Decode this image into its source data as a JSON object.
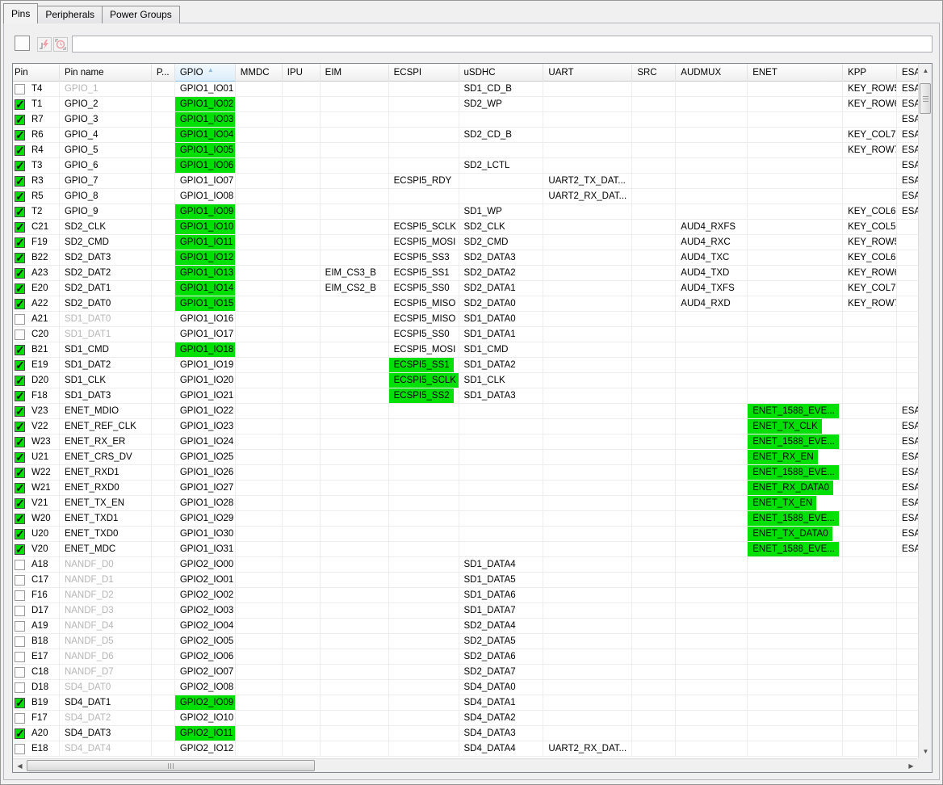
{
  "tabs": [
    {
      "label": "Pins",
      "active": true
    },
    {
      "label": "Peripherals",
      "active": false
    },
    {
      "label": "Power Groups",
      "active": false
    }
  ],
  "toolbar": {
    "checkbox_checked": false,
    "icons": [
      "lightning-icon",
      "clock-icon"
    ],
    "filter_value": ""
  },
  "colors": {
    "route_highlight_green": "#00e005",
    "checked_checkbox_green": "#00e005",
    "sorted_header_blue": "#dcedfa",
    "dim_text_gray": "#b6b6b6"
  },
  "table": {
    "sorted_column": "GPIO",
    "sort_direction": "ascending",
    "columns": [
      {
        "key": "pin",
        "label": "Pin"
      },
      {
        "key": "name",
        "label": "Pin name"
      },
      {
        "key": "p",
        "label": "P..."
      },
      {
        "key": "gpio",
        "label": "GPIO",
        "sorted": true
      },
      {
        "key": "mmdc",
        "label": "MMDC"
      },
      {
        "key": "ipu",
        "label": "IPU"
      },
      {
        "key": "eim",
        "label": "EIM"
      },
      {
        "key": "ecspi",
        "label": "ECSPI"
      },
      {
        "key": "usdhc",
        "label": "uSDHC"
      },
      {
        "key": "uart",
        "label": "UART"
      },
      {
        "key": "src",
        "label": "SRC"
      },
      {
        "key": "audmux",
        "label": "AUDMUX"
      },
      {
        "key": "enet",
        "label": "ENET"
      },
      {
        "key": "kpp",
        "label": "KPP"
      },
      {
        "key": "esa",
        "label": "ESA"
      }
    ],
    "rows": [
      {
        "pin": "T4",
        "name": "GPIO_1",
        "dim": true,
        "chk": false,
        "cells": {
          "gpio": "GPIO1_IO01",
          "usdhc": "SD1_CD_B",
          "kpp": "KEY_ROW5",
          "esa": "ESA"
        },
        "hl": []
      },
      {
        "pin": "T1",
        "name": "GPIO_2",
        "dim": false,
        "chk": true,
        "cells": {
          "gpio": "GPIO1_IO02",
          "usdhc": "SD2_WP",
          "kpp": "KEY_ROW6",
          "esa": "ESA"
        },
        "hl": [
          "gpio"
        ]
      },
      {
        "pin": "R7",
        "name": "GPIO_3",
        "dim": false,
        "chk": true,
        "cells": {
          "gpio": "GPIO1_IO03",
          "esa": "ESA"
        },
        "hl": [
          "gpio"
        ]
      },
      {
        "pin": "R6",
        "name": "GPIO_4",
        "dim": false,
        "chk": true,
        "cells": {
          "gpio": "GPIO1_IO04",
          "usdhc": "SD2_CD_B",
          "kpp": "KEY_COL7",
          "esa": "ESA"
        },
        "hl": [
          "gpio"
        ]
      },
      {
        "pin": "R4",
        "name": "GPIO_5",
        "dim": false,
        "chk": true,
        "cells": {
          "gpio": "GPIO1_IO05",
          "kpp": "KEY_ROW7",
          "esa": "ESA"
        },
        "hl": [
          "gpio"
        ]
      },
      {
        "pin": "T3",
        "name": "GPIO_6",
        "dim": false,
        "chk": true,
        "cells": {
          "gpio": "GPIO1_IO06",
          "usdhc": "SD2_LCTL",
          "esa": "ESA"
        },
        "hl": [
          "gpio"
        ]
      },
      {
        "pin": "R3",
        "name": "GPIO_7",
        "dim": false,
        "chk": true,
        "cells": {
          "gpio": "GPIO1_IO07",
          "ecspi": "ECSPI5_RDY",
          "uart": "UART2_TX_DAT...",
          "esa": "ESA"
        },
        "hl": []
      },
      {
        "pin": "R5",
        "name": "GPIO_8",
        "dim": false,
        "chk": true,
        "cells": {
          "gpio": "GPIO1_IO08",
          "uart": "UART2_RX_DAT...",
          "esa": "ESA"
        },
        "hl": []
      },
      {
        "pin": "T2",
        "name": "GPIO_9",
        "dim": false,
        "chk": true,
        "cells": {
          "gpio": "GPIO1_IO09",
          "usdhc": "SD1_WP",
          "kpp": "KEY_COL6",
          "esa": "ESA"
        },
        "hl": [
          "gpio"
        ]
      },
      {
        "pin": "C21",
        "name": "SD2_CLK",
        "dim": false,
        "chk": true,
        "cells": {
          "gpio": "GPIO1_IO10",
          "ecspi": "ECSPI5_SCLK",
          "usdhc": "SD2_CLK",
          "audmux": "AUD4_RXFS",
          "kpp": "KEY_COL5"
        },
        "hl": [
          "gpio"
        ]
      },
      {
        "pin": "F19",
        "name": "SD2_CMD",
        "dim": false,
        "chk": true,
        "cells": {
          "gpio": "GPIO1_IO11",
          "ecspi": "ECSPI5_MOSI",
          "usdhc": "SD2_CMD",
          "audmux": "AUD4_RXC",
          "kpp": "KEY_ROW5"
        },
        "hl": [
          "gpio"
        ]
      },
      {
        "pin": "B22",
        "name": "SD2_DAT3",
        "dim": false,
        "chk": true,
        "cells": {
          "gpio": "GPIO1_IO12",
          "ecspi": "ECSPI5_SS3",
          "usdhc": "SD2_DATA3",
          "audmux": "AUD4_TXC",
          "kpp": "KEY_COL6"
        },
        "hl": [
          "gpio"
        ]
      },
      {
        "pin": "A23",
        "name": "SD2_DAT2",
        "dim": false,
        "chk": true,
        "cells": {
          "gpio": "GPIO1_IO13",
          "eim": "EIM_CS3_B",
          "ecspi": "ECSPI5_SS1",
          "usdhc": "SD2_DATA2",
          "audmux": "AUD4_TXD",
          "kpp": "KEY_ROW6"
        },
        "hl": [
          "gpio"
        ]
      },
      {
        "pin": "E20",
        "name": "SD2_DAT1",
        "dim": false,
        "chk": true,
        "cells": {
          "gpio": "GPIO1_IO14",
          "eim": "EIM_CS2_B",
          "ecspi": "ECSPI5_SS0",
          "usdhc": "SD2_DATA1",
          "audmux": "AUD4_TXFS",
          "kpp": "KEY_COL7"
        },
        "hl": [
          "gpio"
        ]
      },
      {
        "pin": "A22",
        "name": "SD2_DAT0",
        "dim": false,
        "chk": true,
        "cells": {
          "gpio": "GPIO1_IO15",
          "ecspi": "ECSPI5_MISO",
          "usdhc": "SD2_DATA0",
          "audmux": "AUD4_RXD",
          "kpp": "KEY_ROW7"
        },
        "hl": [
          "gpio"
        ]
      },
      {
        "pin": "A21",
        "name": "SD1_DAT0",
        "dim": true,
        "chk": false,
        "cells": {
          "gpio": "GPIO1_IO16",
          "ecspi": "ECSPI5_MISO",
          "usdhc": "SD1_DATA0"
        },
        "hl": []
      },
      {
        "pin": "C20",
        "name": "SD1_DAT1",
        "dim": true,
        "chk": false,
        "cells": {
          "gpio": "GPIO1_IO17",
          "ecspi": "ECSPI5_SS0",
          "usdhc": "SD1_DATA1"
        },
        "hl": []
      },
      {
        "pin": "B21",
        "name": "SD1_CMD",
        "dim": false,
        "chk": true,
        "cells": {
          "gpio": "GPIO1_IO18",
          "ecspi": "ECSPI5_MOSI",
          "usdhc": "SD1_CMD"
        },
        "hl": [
          "gpio"
        ]
      },
      {
        "pin": "E19",
        "name": "SD1_DAT2",
        "dim": false,
        "chk": true,
        "cells": {
          "gpio": "GPIO1_IO19",
          "ecspi": "ECSPI5_SS1",
          "usdhc": "SD1_DATA2"
        },
        "hl": [
          "ecspi"
        ]
      },
      {
        "pin": "D20",
        "name": "SD1_CLK",
        "dim": false,
        "chk": true,
        "cells": {
          "gpio": "GPIO1_IO20",
          "ecspi": "ECSPI5_SCLK",
          "usdhc": "SD1_CLK"
        },
        "hl": [
          "ecspi"
        ]
      },
      {
        "pin": "F18",
        "name": "SD1_DAT3",
        "dim": false,
        "chk": true,
        "cells": {
          "gpio": "GPIO1_IO21",
          "ecspi": "ECSPI5_SS2",
          "usdhc": "SD1_DATA3"
        },
        "hl": [
          "ecspi"
        ]
      },
      {
        "pin": "V23",
        "name": "ENET_MDIO",
        "dim": false,
        "chk": true,
        "cells": {
          "gpio": "GPIO1_IO22",
          "enet": "ENET_1588_EVE...",
          "esa": "ESA"
        },
        "hl": [
          "enet"
        ]
      },
      {
        "pin": "V22",
        "name": "ENET_REF_CLK",
        "dim": false,
        "chk": true,
        "cells": {
          "gpio": "GPIO1_IO23",
          "enet": "ENET_TX_CLK",
          "esa": "ESA"
        },
        "hl": [
          "enet"
        ]
      },
      {
        "pin": "W23",
        "name": "ENET_RX_ER",
        "dim": false,
        "chk": true,
        "cells": {
          "gpio": "GPIO1_IO24",
          "enet": "ENET_1588_EVE...",
          "esa": "ESA"
        },
        "hl": [
          "enet"
        ]
      },
      {
        "pin": "U21",
        "name": "ENET_CRS_DV",
        "dim": false,
        "chk": true,
        "cells": {
          "gpio": "GPIO1_IO25",
          "enet": "ENET_RX_EN",
          "esa": "ESA"
        },
        "hl": [
          "enet"
        ]
      },
      {
        "pin": "W22",
        "name": "ENET_RXD1",
        "dim": false,
        "chk": true,
        "cells": {
          "gpio": "GPIO1_IO26",
          "enet": "ENET_1588_EVE...",
          "esa": "ESA"
        },
        "hl": [
          "enet"
        ]
      },
      {
        "pin": "W21",
        "name": "ENET_RXD0",
        "dim": false,
        "chk": true,
        "cells": {
          "gpio": "GPIO1_IO27",
          "enet": "ENET_RX_DATA0",
          "esa": "ESA"
        },
        "hl": [
          "enet"
        ]
      },
      {
        "pin": "V21",
        "name": "ENET_TX_EN",
        "dim": false,
        "chk": true,
        "cells": {
          "gpio": "GPIO1_IO28",
          "enet": "ENET_TX_EN",
          "esa": "ESA"
        },
        "hl": [
          "enet"
        ]
      },
      {
        "pin": "W20",
        "name": "ENET_TXD1",
        "dim": false,
        "chk": true,
        "cells": {
          "gpio": "GPIO1_IO29",
          "enet": "ENET_1588_EVE...",
          "esa": "ESA"
        },
        "hl": [
          "enet"
        ]
      },
      {
        "pin": "U20",
        "name": "ENET_TXD0",
        "dim": false,
        "chk": true,
        "cells": {
          "gpio": "GPIO1_IO30",
          "enet": "ENET_TX_DATA0",
          "esa": "ESA"
        },
        "hl": [
          "enet"
        ]
      },
      {
        "pin": "V20",
        "name": "ENET_MDC",
        "dim": false,
        "chk": true,
        "cells": {
          "gpio": "GPIO1_IO31",
          "enet": "ENET_1588_EVE...",
          "esa": "ESA"
        },
        "hl": [
          "enet"
        ]
      },
      {
        "pin": "A18",
        "name": "NANDF_D0",
        "dim": true,
        "chk": false,
        "cells": {
          "gpio": "GPIO2_IO00",
          "usdhc": "SD1_DATA4"
        },
        "hl": []
      },
      {
        "pin": "C17",
        "name": "NANDF_D1",
        "dim": true,
        "chk": false,
        "cells": {
          "gpio": "GPIO2_IO01",
          "usdhc": "SD1_DATA5"
        },
        "hl": []
      },
      {
        "pin": "F16",
        "name": "NANDF_D2",
        "dim": true,
        "chk": false,
        "cells": {
          "gpio": "GPIO2_IO02",
          "usdhc": "SD1_DATA6"
        },
        "hl": []
      },
      {
        "pin": "D17",
        "name": "NANDF_D3",
        "dim": true,
        "chk": false,
        "cells": {
          "gpio": "GPIO2_IO03",
          "usdhc": "SD1_DATA7"
        },
        "hl": []
      },
      {
        "pin": "A19",
        "name": "NANDF_D4",
        "dim": true,
        "chk": false,
        "cells": {
          "gpio": "GPIO2_IO04",
          "usdhc": "SD2_DATA4"
        },
        "hl": []
      },
      {
        "pin": "B18",
        "name": "NANDF_D5",
        "dim": true,
        "chk": false,
        "cells": {
          "gpio": "GPIO2_IO05",
          "usdhc": "SD2_DATA5"
        },
        "hl": []
      },
      {
        "pin": "E17",
        "name": "NANDF_D6",
        "dim": true,
        "chk": false,
        "cells": {
          "gpio": "GPIO2_IO06",
          "usdhc": "SD2_DATA6"
        },
        "hl": []
      },
      {
        "pin": "C18",
        "name": "NANDF_D7",
        "dim": true,
        "chk": false,
        "cells": {
          "gpio": "GPIO2_IO07",
          "usdhc": "SD2_DATA7"
        },
        "hl": []
      },
      {
        "pin": "D18",
        "name": "SD4_DAT0",
        "dim": true,
        "chk": false,
        "cells": {
          "gpio": "GPIO2_IO08",
          "usdhc": "SD4_DATA0"
        },
        "hl": []
      },
      {
        "pin": "B19",
        "name": "SD4_DAT1",
        "dim": false,
        "chk": true,
        "cells": {
          "gpio": "GPIO2_IO09",
          "usdhc": "SD4_DATA1"
        },
        "hl": [
          "gpio"
        ]
      },
      {
        "pin": "F17",
        "name": "SD4_DAT2",
        "dim": true,
        "chk": false,
        "cells": {
          "gpio": "GPIO2_IO10",
          "usdhc": "SD4_DATA2"
        },
        "hl": []
      },
      {
        "pin": "A20",
        "name": "SD4_DAT3",
        "dim": false,
        "chk": true,
        "cells": {
          "gpio": "GPIO2_IO11",
          "usdhc": "SD4_DATA3"
        },
        "hl": [
          "gpio"
        ]
      },
      {
        "pin": "E18",
        "name": "SD4_DAT4",
        "dim": true,
        "chk": false,
        "cells": {
          "gpio": "GPIO2_IO12",
          "usdhc": "SD4_DATA4",
          "uart": "UART2_RX_DAT..."
        },
        "hl": []
      }
    ]
  }
}
